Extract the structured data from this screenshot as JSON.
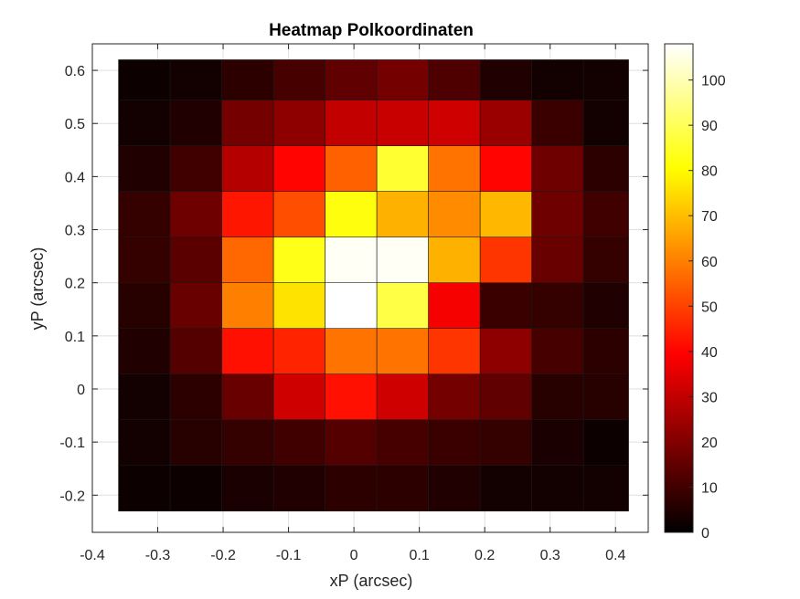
{
  "chart_data": {
    "type": "heatmap",
    "title": "Heatmap Polkoordinaten",
    "xlabel": "xP (arcsec)",
    "ylabel": "yP (arcsec)",
    "xlim": [
      -0.4,
      0.45
    ],
    "ylim": [
      -0.27,
      0.65
    ],
    "xticks": [
      -0.4,
      -0.3,
      -0.2,
      -0.1,
      0,
      0.1,
      0.2,
      0.3,
      0.4
    ],
    "xtick_labels": [
      "-0.4",
      "-0.3",
      "-0.2",
      "-0.1",
      "0",
      "0.1",
      "0.2",
      "0.3",
      "0.4"
    ],
    "yticks": [
      -0.2,
      -0.1,
      0,
      0.1,
      0.2,
      0.3,
      0.4,
      0.5,
      0.6
    ],
    "ytick_labels": [
      "-0.2",
      "-0.1",
      "0",
      "0.1",
      "0.2",
      "0.3",
      "0.4",
      "0.5",
      "0.6"
    ],
    "x_edges": [
      -0.36,
      -0.281,
      -0.202,
      -0.123,
      -0.044,
      0.035,
      0.114,
      0.193,
      0.272,
      0.351,
      0.42
    ],
    "y_edges": [
      -0.23,
      -0.144,
      -0.058,
      0.028,
      0.114,
      0.2,
      0.286,
      0.372,
      0.458,
      0.544,
      0.62
    ],
    "z_rows_bottom_to_top": [
      [
        2,
        2,
        4,
        5,
        7,
        7,
        5,
        3,
        3,
        3
      ],
      [
        3,
        6,
        8,
        10,
        13,
        11,
        9,
        8,
        4,
        2
      ],
      [
        3,
        7,
        16,
        32,
        42,
        32,
        18,
        15,
        6,
        6
      ],
      [
        5,
        13,
        42,
        45,
        58,
        58,
        48,
        22,
        11,
        7
      ],
      [
        6,
        16,
        60,
        76,
        108,
        88,
        38,
        9,
        8,
        5
      ],
      [
        8,
        14,
        56,
        83,
        107,
        107,
        68,
        48,
        16,
        8
      ],
      [
        8,
        17,
        43,
        52,
        82,
        68,
        62,
        69,
        17,
        10
      ],
      [
        5,
        10,
        28,
        40,
        55,
        86,
        58,
        40,
        17,
        7
      ],
      [
        3,
        5,
        18,
        22,
        30,
        31,
        32,
        24,
        9,
        3
      ],
      [
        2,
        3,
        7,
        11,
        15,
        18,
        12,
        5,
        3,
        3
      ]
    ],
    "colormap": "hot",
    "colorbar": {
      "range": [
        0,
        108
      ],
      "ticks": [
        0,
        10,
        20,
        30,
        40,
        50,
        60,
        70,
        80,
        90,
        100
      ],
      "tick_labels": [
        "0",
        "10",
        "20",
        "30",
        "40",
        "50",
        "60",
        "70",
        "80",
        "90",
        "100"
      ]
    },
    "grid": true,
    "legend": "none"
  }
}
